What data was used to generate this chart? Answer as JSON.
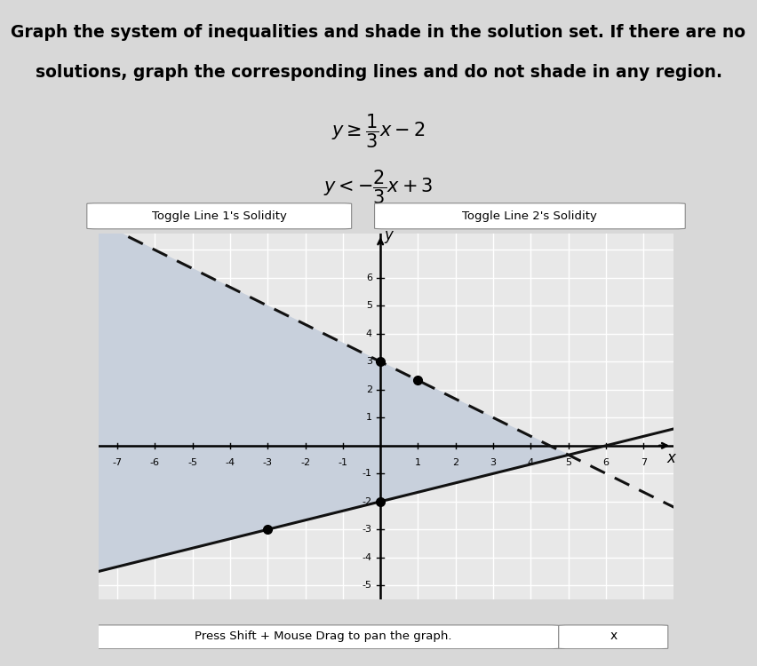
{
  "line1_slope": 0.3333333333333333,
  "line1_intercept": -2,
  "line2_slope": -0.6666666666666666,
  "line2_intercept": 3,
  "xmin": -7,
  "xmax": 7,
  "ymin": -5,
  "ymax": 7,
  "xticks": [
    -7,
    -6,
    -5,
    -4,
    -3,
    -2,
    -1,
    1,
    2,
    3,
    4,
    5,
    6,
    7
  ],
  "yticks": [
    -5,
    -4,
    -3,
    -2,
    -1,
    1,
    2,
    3,
    4,
    5,
    6
  ],
  "line1_color": "#111111",
  "line2_color": "#111111",
  "shade_color": "#c8d0dc",
  "background_color": "#d8d8d8",
  "plot_bg_color": "#e8e8e8",
  "grid_color": "#ffffff",
  "toggle1_label": "Toggle Line 1's Solidity",
  "toggle2_label": "Toggle Line 2's Solidity",
  "bottom_label": "Press Shift + Mouse Drag to pan the graph.",
  "fig_width": 8.52,
  "fig_height": 7.5,
  "dpi": 100
}
